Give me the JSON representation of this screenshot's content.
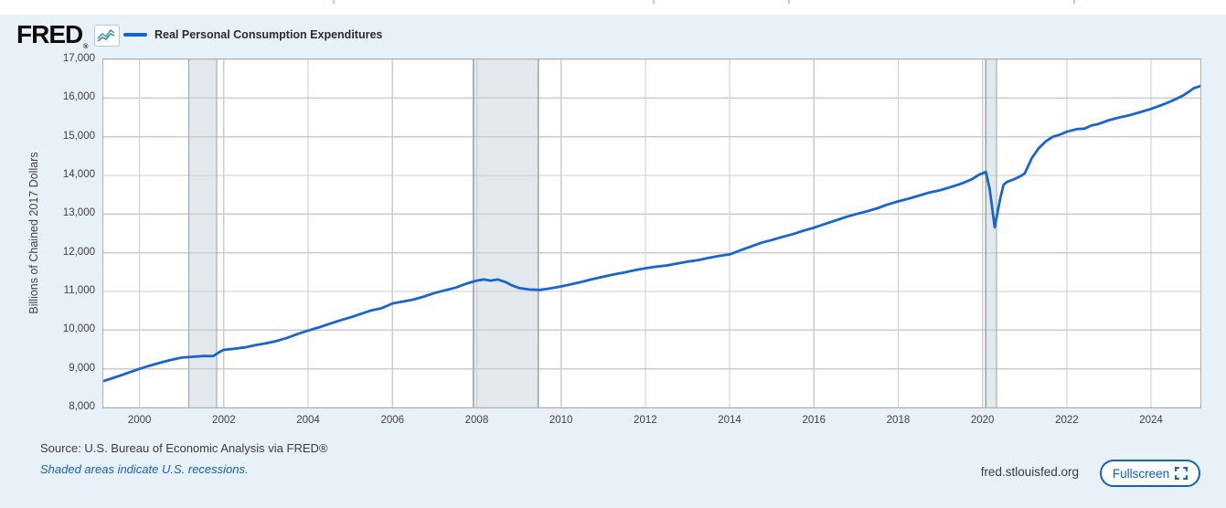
{
  "header": {
    "logo_text": "FRED",
    "logo_registered": "®",
    "legend": {
      "label": "Real Personal Consumption Expenditures"
    }
  },
  "footer": {
    "source_line": "Source: U.S. Bureau of Economic Analysis via FRED®",
    "recession_note": "Shaded areas indicate U.S. recessions.",
    "watermark": "fred.stlouisfed.org",
    "fullscreen_label": "Fullscreen"
  },
  "icons": {
    "logo_icon": "line-chart-icon",
    "fullscreen_icon": "expand-corners-icon"
  },
  "colors": {
    "line": "#1766cf",
    "panel_bg": "#e8f1f8",
    "plot_bg": "#ffffff",
    "gridline": "#cccccc",
    "plot_border": "#b0b0b0",
    "recession_fill": "#e3e8ec",
    "recession_edge": "#9aa1a7",
    "link_blue": "#1261c5"
  },
  "chart_data": {
    "type": "line",
    "title": "Real Personal Consumption Expenditures",
    "xlabel": "",
    "ylabel": "Billions of Chained 2017 Dollars",
    "grid": true,
    "legend_position": "top-left",
    "xlim": [
      1999.14,
      2025.17
    ],
    "ylim": [
      8000,
      17000
    ],
    "x_ticks": [
      2000,
      2002,
      2004,
      2006,
      2008,
      2010,
      2012,
      2014,
      2016,
      2018,
      2020,
      2022,
      2024
    ],
    "x_tick_labels": [
      "2000",
      "2002",
      "2004",
      "2006",
      "2008",
      "2010",
      "2012",
      "2014",
      "2016",
      "2018",
      "2020",
      "2022",
      "2024"
    ],
    "y_ticks": [
      8000,
      9000,
      10000,
      11000,
      12000,
      13000,
      14000,
      15000,
      16000,
      17000
    ],
    "y_tick_labels": [
      "8,000",
      "9,000",
      "10,000",
      "11,000",
      "12,000",
      "13,000",
      "14,000",
      "15,000",
      "16,000",
      "17,000"
    ],
    "recessions": [
      [
        2001.17,
        2001.83
      ],
      [
        2007.92,
        2009.46
      ],
      [
        2020.08,
        2020.33
      ]
    ],
    "series": [
      {
        "name": "Real Personal Consumption Expenditures",
        "x": [
          1999.0,
          1999.25,
          1999.5,
          1999.75,
          2000.0,
          2000.25,
          2000.5,
          2000.75,
          2001.0,
          2001.25,
          2001.5,
          2001.75,
          2001.92,
          2002.0,
          2002.25,
          2002.5,
          2002.75,
          2003.0,
          2003.25,
          2003.5,
          2003.75,
          2004.0,
          2004.25,
          2004.5,
          2004.75,
          2005.0,
          2005.25,
          2005.5,
          2005.75,
          2006.0,
          2006.25,
          2006.5,
          2006.75,
          2007.0,
          2007.25,
          2007.5,
          2007.75,
          2008.0,
          2008.17,
          2008.33,
          2008.5,
          2008.67,
          2008.83,
          2009.0,
          2009.25,
          2009.5,
          2009.75,
          2010.0,
          2010.25,
          2010.5,
          2010.75,
          2011.0,
          2011.25,
          2011.5,
          2011.75,
          2012.0,
          2012.25,
          2012.5,
          2012.75,
          2013.0,
          2013.25,
          2013.5,
          2013.75,
          2014.0,
          2014.25,
          2014.5,
          2014.75,
          2015.0,
          2015.25,
          2015.5,
          2015.75,
          2016.0,
          2016.25,
          2016.5,
          2016.75,
          2017.0,
          2017.25,
          2017.5,
          2017.75,
          2018.0,
          2018.25,
          2018.5,
          2018.75,
          2019.0,
          2019.25,
          2019.5,
          2019.75,
          2019.92,
          2020.08,
          2020.17,
          2020.29,
          2020.42,
          2020.5,
          2020.58,
          2020.75,
          2020.92,
          2021.0,
          2021.17,
          2021.33,
          2021.5,
          2021.67,
          2021.83,
          2022.0,
          2022.25,
          2022.42,
          2022.58,
          2022.75,
          2023.0,
          2023.25,
          2023.5,
          2023.75,
          2024.0,
          2024.25,
          2024.5,
          2024.75,
          2024.92,
          2025.0,
          2025.17
        ],
        "values": [
          8630,
          8720,
          8810,
          8905,
          9000,
          9085,
          9160,
          9230,
          9290,
          9310,
          9330,
          9330,
          9450,
          9490,
          9520,
          9555,
          9610,
          9660,
          9720,
          9800,
          9900,
          9990,
          10070,
          10160,
          10250,
          10330,
          10420,
          10510,
          10570,
          10690,
          10740,
          10790,
          10870,
          10960,
          11030,
          11100,
          11200,
          11280,
          11310,
          11280,
          11310,
          11250,
          11160,
          11090,
          11050,
          11040,
          11080,
          11130,
          11190,
          11250,
          11320,
          11380,
          11440,
          11490,
          11550,
          11600,
          11640,
          11670,
          11720,
          11770,
          11810,
          11870,
          11920,
          11960,
          12060,
          12160,
          12260,
          12330,
          12410,
          12480,
          12570,
          12650,
          12740,
          12830,
          12920,
          13000,
          13070,
          13150,
          13250,
          13330,
          13400,
          13480,
          13560,
          13620,
          13700,
          13790,
          13900,
          14020,
          14090,
          13650,
          12660,
          13400,
          13760,
          13830,
          13900,
          13990,
          14050,
          14450,
          14700,
          14880,
          15000,
          15050,
          15130,
          15200,
          15210,
          15290,
          15330,
          15430,
          15500,
          15560,
          15640,
          15720,
          15820,
          15930,
          16060,
          16180,
          16250,
          16310
        ]
      }
    ]
  }
}
